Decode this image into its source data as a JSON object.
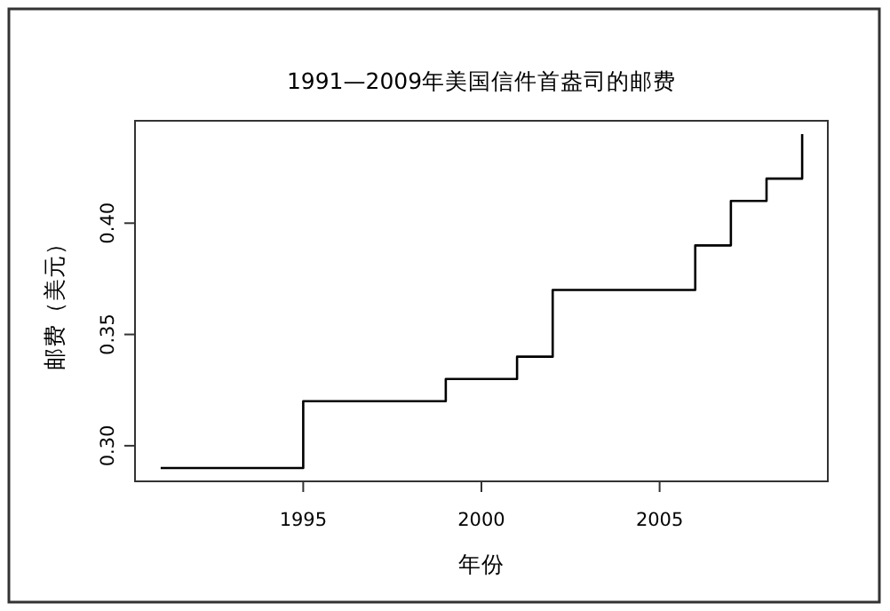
{
  "chart_data": {
    "type": "step",
    "title": "1991—2009年美国信件首盎司的邮费",
    "xlabel": "年份",
    "ylabel": "邮费（美元）",
    "x": [
      1991,
      1995,
      1999,
      2001,
      2002,
      2006,
      2007,
      2008,
      2009
    ],
    "values": [
      0.29,
      0.32,
      0.33,
      0.34,
      0.37,
      0.39,
      0.41,
      0.42,
      0.44
    ],
    "color": "#000000",
    "xlim": [
      1990.28,
      2009.72
    ],
    "ylim": [
      0.284,
      0.446
    ],
    "xticks": [
      1995,
      2000,
      2005
    ],
    "yticks": [
      {
        "value": 0.3,
        "label": "0.30"
      },
      {
        "value": 0.35,
        "label": "0.35"
      },
      {
        "value": 0.4,
        "label": "0.40"
      }
    ],
    "grid": false,
    "marker": "none",
    "line_style": "solid"
  }
}
